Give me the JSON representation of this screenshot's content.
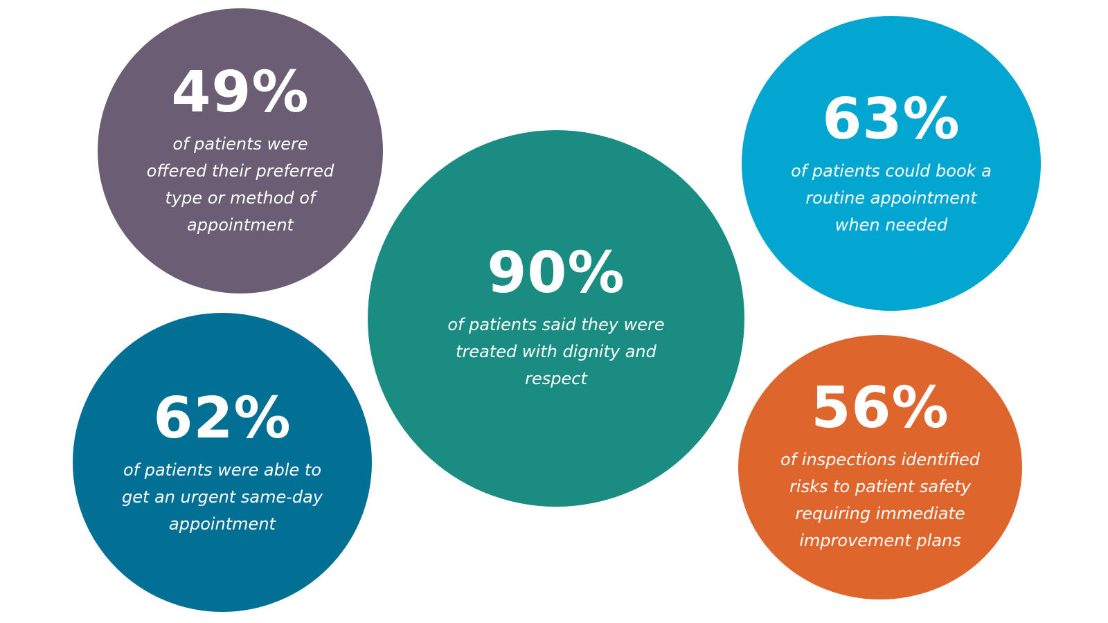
{
  "stats": [
    {
      "id": "b49",
      "value": "49%",
      "description": "of patients were\noffered their preferred\ntype or method of\nappointment",
      "color": "#6b5d73"
    },
    {
      "id": "b90",
      "value": "90%",
      "description": "of patients said they were\ntreated with dignity and\nrespect",
      "color": "#1b8c82"
    },
    {
      "id": "b63",
      "value": "63%",
      "description": "of patients could book a\nroutine appointment\nwhen needed",
      "color": "#03a6d1"
    },
    {
      "id": "b62",
      "value": "62%",
      "description": "of patients were able to\nget an urgent same-day\nappointment",
      "color": "#026f94"
    },
    {
      "id": "b56",
      "value": "56%",
      "description": "of inspections identified\nrisks to patient safety\nrequiring immediate\nimprovement plans",
      "color": "#de652c"
    }
  ]
}
